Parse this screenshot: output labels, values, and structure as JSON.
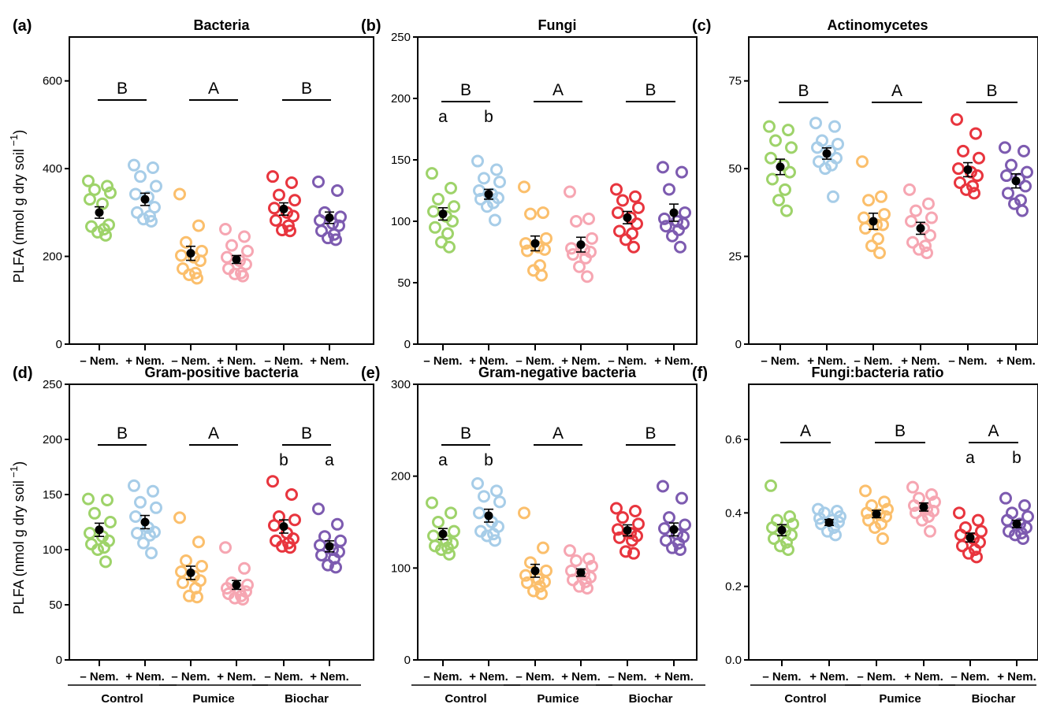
{
  "chart_data": [
    {
      "type": "scatter",
      "panel": "(a)",
      "title": "Bacteria",
      "ylabel": "PLFA (nmol g dry soil",
      "ylabel_sup": "−1",
      "ylabel_close": ")",
      "ylim": [
        0,
        700
      ],
      "yticks": [
        0,
        200,
        400,
        600
      ],
      "grid": false,
      "categories": [
        "– Nem.",
        "+ Nem.",
        "– Nem.",
        "+ Nem.",
        "– Nem.",
        "+ Nem."
      ],
      "groups": [
        "Control",
        "Pumice",
        "Biochar"
      ],
      "group_letters": [
        "B",
        "A",
        "B"
      ],
      "pair_letters": [],
      "colors": [
        "#9ed36a",
        "#a7cde8",
        "#fbbf6c",
        "#f6a6b2",
        "#e8353e",
        "#7d5bb0"
      ],
      "series": [
        {
          "points": [
            372,
            360,
            352,
            345,
            330,
            320,
            272,
            268,
            262,
            255,
            248
          ],
          "mean": 300,
          "se": 13
        },
        {
          "points": [
            408,
            402,
            382,
            360,
            342,
            335,
            312,
            300,
            292,
            285,
            280
          ],
          "mean": 330,
          "se": 14
        },
        {
          "points": [
            342,
            270,
            232,
            212,
            202,
            198,
            190,
            172,
            162,
            158,
            150
          ],
          "mean": 207,
          "se": 16
        },
        {
          "points": [
            262,
            245,
            225,
            212,
            198,
            190,
            182,
            172,
            162,
            160,
            155
          ],
          "mean": 193,
          "se": 9
        },
        {
          "points": [
            382,
            368,
            340,
            328,
            310,
            300,
            292,
            282,
            270,
            260,
            258
          ],
          "mean": 308,
          "se": 14
        },
        {
          "points": [
            370,
            350,
            300,
            290,
            282,
            275,
            270,
            258,
            250,
            242,
            238
          ],
          "mean": 288,
          "se": 13
        }
      ]
    },
    {
      "type": "scatter",
      "panel": "(b)",
      "title": "Fungi",
      "ylim": [
        0,
        250
      ],
      "yticks": [
        0,
        50,
        100,
        150,
        200,
        250
      ],
      "grid": false,
      "categories": [
        "– Nem.",
        "+ Nem.",
        "– Nem.",
        "+ Nem.",
        "– Nem.",
        "+ Nem."
      ],
      "groups": [
        "Control",
        "Pumice",
        "Biochar"
      ],
      "group_letters": [
        "B",
        "A",
        "B"
      ],
      "pair_letters": [
        {
          "group": 0,
          "letters": [
            "a",
            "b"
          ]
        }
      ],
      "colors": [
        "#9ed36a",
        "#a7cde8",
        "#fbbf6c",
        "#f6a6b2",
        "#e8353e",
        "#7d5bb0"
      ],
      "series": [
        {
          "points": [
            139,
            127,
            118,
            112,
            108,
            104,
            100,
            95,
            90,
            83,
            79
          ],
          "mean": 106,
          "se": 5
        },
        {
          "points": [
            149,
            142,
            135,
            132,
            125,
            122,
            119,
            118,
            115,
            112,
            101
          ],
          "mean": 122,
          "se": 4
        },
        {
          "points": [
            128,
            107,
            106,
            86,
            82,
            79,
            77,
            76,
            64,
            60,
            56
          ],
          "mean": 82,
          "se": 6
        },
        {
          "points": [
            124,
            102,
            100,
            86,
            78,
            77,
            75,
            73,
            70,
            63,
            55
          ],
          "mean": 81,
          "se": 6
        },
        {
          "points": [
            126,
            120,
            117,
            111,
            107,
            103,
            98,
            92,
            90,
            85,
            79
          ],
          "mean": 103,
          "se": 5
        },
        {
          "points": [
            144,
            140,
            126,
            107,
            102,
            100,
            98,
            96,
            93,
            88,
            79
          ],
          "mean": 107,
          "se": 7
        }
      ]
    },
    {
      "type": "scatter",
      "panel": "(c)",
      "title": "Actinomycetes",
      "ylim": [
        0,
        87.5
      ],
      "yticks": [
        0,
        25,
        50,
        75
      ],
      "grid": false,
      "categories": [
        "– Nem.",
        "+ Nem.",
        "– Nem.",
        "+ Nem.",
        "– Nem.",
        "+ Nem."
      ],
      "groups": [
        "Control",
        "Pumice",
        "Biochar"
      ],
      "group_letters": [
        "B",
        "A",
        "B"
      ],
      "pair_letters": [],
      "colors": [
        "#9ed36a",
        "#a7cde8",
        "#fbbf6c",
        "#f6a6b2",
        "#e8353e",
        "#7d5bb0"
      ],
      "series": [
        {
          "points": [
            62,
            61,
            58,
            56,
            53,
            51,
            49,
            47,
            44,
            41,
            38
          ],
          "mean": 50.5,
          "se": 2.2
        },
        {
          "points": [
            63,
            62,
            58,
            57,
            56,
            55,
            53,
            52,
            51,
            50,
            42
          ],
          "mean": 54.3,
          "se": 1.6
        },
        {
          "points": [
            52,
            42,
            41,
            37,
            36,
            34,
            34,
            33,
            30,
            28,
            26
          ],
          "mean": 35,
          "se": 2.3
        },
        {
          "points": [
            44,
            40,
            38,
            36,
            35,
            33,
            31,
            29,
            28,
            27,
            26
          ],
          "mean": 33,
          "se": 1.7
        },
        {
          "points": [
            64,
            60,
            55,
            53,
            50,
            49,
            48,
            46,
            45,
            44,
            43
          ],
          "mean": 49.7,
          "se": 2
        },
        {
          "points": [
            56,
            55,
            51,
            49,
            48,
            47,
            45,
            43,
            41,
            40,
            38
          ],
          "mean": 46.5,
          "se": 2
        }
      ]
    },
    {
      "type": "scatter",
      "panel": "(d)",
      "title": "Gram-positive bacteria",
      "ylabel": "PLFA (nmol g dry soil",
      "ylabel_sup": "−1",
      "ylabel_close": ")",
      "ylim": [
        0,
        250
      ],
      "yticks": [
        0,
        50,
        100,
        150,
        200,
        250
      ],
      "grid": false,
      "categories": [
        "– Nem.",
        "+ Nem.",
        "– Nem.",
        "+ Nem.",
        "– Nem.",
        "+ Nem."
      ],
      "groups": [
        "Control",
        "Pumice",
        "Biochar"
      ],
      "group_letters": [
        "B",
        "A",
        "B"
      ],
      "pair_letters": [
        {
          "group": 2,
          "letters": [
            "b",
            "a"
          ]
        }
      ],
      "colors": [
        "#9ed36a",
        "#a7cde8",
        "#fbbf6c",
        "#f6a6b2",
        "#e8353e",
        "#7d5bb0"
      ],
      "series": [
        {
          "points": [
            146,
            145,
            133,
            125,
            115,
            112,
            108,
            105,
            102,
            100,
            89
          ],
          "mean": 118,
          "se": 6
        },
        {
          "points": [
            158,
            153,
            143,
            138,
            130,
            120,
            116,
            115,
            113,
            106,
            97
          ],
          "mean": 125,
          "se": 6
        },
        {
          "points": [
            129,
            107,
            90,
            85,
            80,
            76,
            72,
            70,
            65,
            58,
            57
          ],
          "mean": 79,
          "se": 6
        },
        {
          "points": [
            102,
            83,
            70,
            68,
            65,
            63,
            62,
            60,
            58,
            56,
            55
          ],
          "mean": 68,
          "se": 4
        },
        {
          "points": [
            162,
            150,
            130,
            127,
            122,
            115,
            110,
            108,
            106,
            103,
            102
          ],
          "mean": 121,
          "se": 6
        },
        {
          "points": [
            137,
            123,
            112,
            108,
            104,
            100,
            98,
            95,
            92,
            86,
            84
          ],
          "mean": 103,
          "se": 5
        }
      ]
    },
    {
      "type": "scatter",
      "panel": "(e)",
      "title": "Gram-negative bacteria",
      "ylim": [
        0,
        300
      ],
      "yticks": [
        0,
        100,
        200,
        300
      ],
      "grid": false,
      "categories": [
        "– Nem.",
        "+ Nem.",
        "– Nem.",
        "+ Nem.",
        "– Nem.",
        "+ Nem."
      ],
      "groups": [
        "Control",
        "Pumice",
        "Biochar"
      ],
      "group_letters": [
        "B",
        "A",
        "B"
      ],
      "pair_letters": [
        {
          "group": 0,
          "letters": [
            "a",
            "b"
          ]
        }
      ],
      "colors": [
        "#9ed36a",
        "#a7cde8",
        "#fbbf6c",
        "#f6a6b2",
        "#e8353e",
        "#7d5bb0"
      ],
      "series": [
        {
          "points": [
            171,
            160,
            150,
            140,
            135,
            130,
            127,
            124,
            122,
            120,
            115
          ],
          "mean": 137,
          "se": 6
        },
        {
          "points": [
            192,
            184,
            178,
            172,
            160,
            150,
            145,
            140,
            137,
            135,
            130
          ],
          "mean": 157,
          "se": 7
        },
        {
          "points": [
            160,
            122,
            106,
            97,
            92,
            88,
            85,
            84,
            80,
            75,
            72
          ],
          "mean": 97,
          "se": 7
        },
        {
          "points": [
            119,
            110,
            108,
            102,
            97,
            93,
            90,
            87,
            85,
            80,
            78
          ],
          "mean": 95,
          "se": 4
        },
        {
          "points": [
            165,
            162,
            155,
            148,
            142,
            138,
            135,
            133,
            130,
            118,
            116
          ],
          "mean": 141,
          "se": 6
        },
        {
          "points": [
            189,
            176,
            155,
            147,
            143,
            137,
            134,
            130,
            127,
            122,
            120
          ],
          "mean": 142,
          "se": 7
        }
      ]
    },
    {
      "type": "scatter",
      "panel": "(f)",
      "title": "Fungi:bacteria ratio",
      "ylim": [
        0,
        0.75
      ],
      "yticks": [
        0.0,
        0.2,
        0.4,
        0.6
      ],
      "ytick_labels": [
        "0.0",
        "0.2",
        "0.4",
        "0.6"
      ],
      "grid": false,
      "categories": [
        "– Nem.",
        "+ Nem.",
        "– Nem.",
        "+ Nem.",
        "– Nem.",
        "+ Nem."
      ],
      "groups": [
        "Control",
        "Pumice",
        "Biochar"
      ],
      "group_letters": [
        "A",
        "B",
        "A"
      ],
      "pair_letters": [
        {
          "group": 2,
          "letters": [
            "a",
            "b"
          ]
        }
      ],
      "colors": [
        "#9ed36a",
        "#a7cde8",
        "#fbbf6c",
        "#f6a6b2",
        "#e8353e",
        "#7d5bb0"
      ],
      "series": [
        {
          "points": [
            0.474,
            0.39,
            0.38,
            0.37,
            0.36,
            0.35,
            0.34,
            0.33,
            0.32,
            0.31,
            0.3
          ],
          "mean": 0.353,
          "se": 0.015
        },
        {
          "points": [
            0.41,
            0.405,
            0.4,
            0.39,
            0.385,
            0.38,
            0.375,
            0.37,
            0.36,
            0.35,
            0.34
          ],
          "mean": 0.374,
          "se": 0.008
        },
        {
          "points": [
            0.46,
            0.43,
            0.42,
            0.41,
            0.4,
            0.395,
            0.39,
            0.38,
            0.37,
            0.36,
            0.33
          ],
          "mean": 0.397,
          "se": 0.01
        },
        {
          "points": [
            0.47,
            0.45,
            0.44,
            0.43,
            0.42,
            0.41,
            0.405,
            0.4,
            0.39,
            0.38,
            0.35
          ],
          "mean": 0.416,
          "se": 0.011
        },
        {
          "points": [
            0.4,
            0.38,
            0.36,
            0.35,
            0.34,
            0.33,
            0.32,
            0.31,
            0.3,
            0.29,
            0.28
          ],
          "mean": 0.333,
          "se": 0.012
        },
        {
          "points": [
            0.44,
            0.42,
            0.4,
            0.39,
            0.38,
            0.37,
            0.36,
            0.35,
            0.345,
            0.34,
            0.33
          ],
          "mean": 0.37,
          "se": 0.01
        }
      ]
    }
  ]
}
